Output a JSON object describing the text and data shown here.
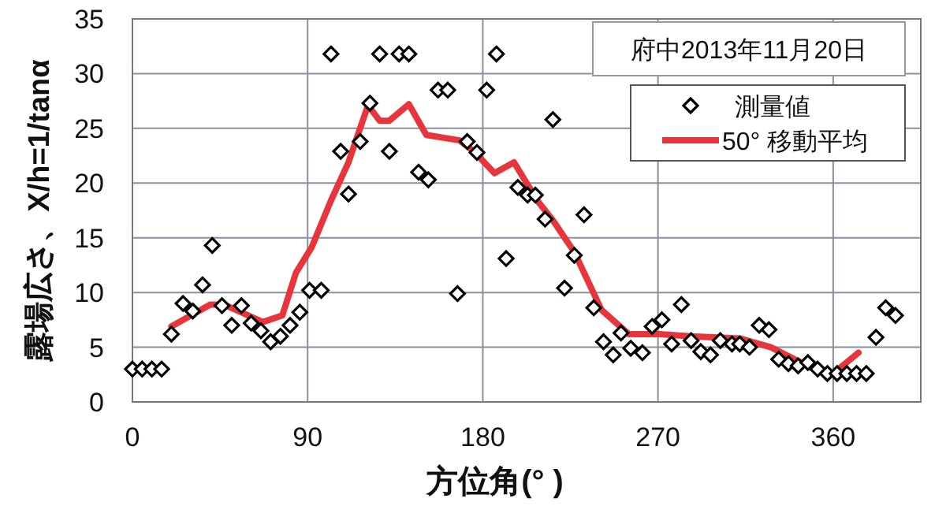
{
  "chart_data": {
    "type": "scatter",
    "title": "府中2013年11月20日",
    "xlabel": "方位角(°  )",
    "ylabel": "露場広さ、X/h=1/tanα",
    "xlim": [
      0,
      405
    ],
    "ylim": [
      0,
      35
    ],
    "xticks": [
      0,
      90,
      180,
      270,
      360
    ],
    "yticks": [
      0,
      5,
      10,
      15,
      20,
      25,
      30,
      35
    ],
    "grid": true,
    "legend": "top right",
    "series": [
      {
        "name": "測量値",
        "type": "scatter",
        "marker": "diamond",
        "color": "#000000",
        "x": [
          0,
          5,
          10,
          15,
          20,
          26,
          31,
          36,
          41,
          46,
          51,
          56,
          61,
          66,
          71,
          76,
          81,
          86,
          91,
          97,
          102,
          107,
          111,
          117,
          122,
          127,
          132,
          137,
          142,
          147,
          152,
          157,
          162,
          167,
          172,
          177,
          182,
          187,
          192,
          198,
          203,
          207,
          212,
          216,
          222,
          227,
          232,
          237,
          242,
          247,
          251,
          256,
          262,
          267,
          272,
          277,
          282,
          287,
          292,
          297,
          302,
          308,
          312,
          317,
          322,
          327,
          332,
          337,
          342,
          347,
          352,
          357,
          362,
          367,
          372,
          377,
          382,
          387,
          392
        ],
        "values": [
          3,
          3,
          3,
          3,
          6.2,
          9,
          8.3,
          10.7,
          14.3,
          8.8,
          7,
          8.8,
          7.2,
          6.5,
          5.5,
          6,
          7,
          8.2,
          10.2,
          10.2,
          31.8,
          22.9,
          19,
          23.8,
          27.3,
          31.8,
          22.9,
          31.8,
          31.8,
          21,
          20.3,
          28.5,
          28.5,
          9.9,
          23.8,
          22.8,
          28.5,
          31.8,
          13.1,
          19.6,
          18.9,
          18.9,
          16.7,
          25.8,
          10.4,
          13.4,
          17.1,
          8.6,
          5.5,
          4.3,
          6.3,
          4.9,
          4.5,
          6.9,
          7.5,
          5.3,
          8.9,
          5.6,
          4.6,
          4.3,
          5.6,
          5.3,
          5.3,
          5,
          7,
          6.6,
          3.9,
          3.5,
          3.3,
          3.6,
          3,
          2.6,
          2.6,
          2.6,
          2.6,
          2.6,
          5.9,
          8.6,
          7.9
        ]
      },
      {
        "name": "50°  移動平均",
        "type": "line",
        "marker": "none",
        "line_style": "solid",
        "color": "#e8353b",
        "x": [
          20,
          40,
          47,
          67,
          77,
          84,
          92,
          102,
          111,
          121,
          127,
          132,
          142,
          151,
          168,
          176,
          186,
          196,
          208,
          216,
          227,
          241,
          255,
          271,
          287,
          312,
          328,
          349,
          360,
          373
        ],
        "values": [
          6.9,
          8.9,
          8.9,
          7.3,
          7.9,
          11.8,
          14.1,
          18.4,
          21.9,
          27.1,
          25.7,
          25.7,
          27.2,
          24.4,
          23.9,
          22.8,
          20.9,
          21.9,
          18.4,
          16.6,
          13.7,
          8.4,
          6.2,
          6.2,
          6,
          5.8,
          5,
          3.1,
          2.6,
          4.5
        ]
      }
    ]
  }
}
